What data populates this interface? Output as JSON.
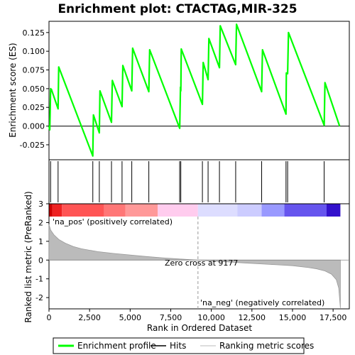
{
  "chart_data": {
    "type": "line",
    "title": "Enrichment plot: CTACTAG,MIR-325",
    "top_panel": {
      "ylabel": "Enrichment score (ES)",
      "ylim": [
        -0.045,
        0.14
      ],
      "yticks": [
        -0.025,
        0.0,
        0.025,
        0.05,
        0.075,
        0.1,
        0.125
      ],
      "ytick_labels": [
        "-0.025",
        "0.000",
        "0.025",
        "0.050",
        "0.075",
        "0.100",
        "0.125"
      ],
      "series": [
        {
          "name": "Enrichment profile",
          "color": "#00ff00",
          "x": [
            0,
            50,
            100,
            150,
            560,
            600,
            2700,
            2740,
            3100,
            3140,
            3850,
            3900,
            4500,
            4550,
            5100,
            5150,
            6150,
            6200,
            8050,
            8100,
            8120,
            8150,
            9450,
            9500,
            9800,
            9850,
            10500,
            10550,
            11500,
            11550,
            13100,
            13150,
            14600,
            14620,
            14700,
            14750,
            16950,
            17000,
            17900
          ],
          "y": [
            0.0,
            -0.005,
            0.05,
            0.049,
            0.023,
            0.079,
            -0.04,
            0.015,
            -0.009,
            0.047,
            0.005,
            0.061,
            0.026,
            0.081,
            0.047,
            0.104,
            0.046,
            0.102,
            -0.003,
            0.052,
            0.047,
            0.103,
            0.029,
            0.085,
            0.062,
            0.117,
            0.078,
            0.134,
            0.082,
            0.136,
            0.046,
            0.102,
            0.016,
            0.071,
            0.07,
            0.125,
            0.001,
            0.058,
            0.0
          ]
        }
      ]
    },
    "hits": {
      "name": "Hits",
      "positions": [
        100,
        560,
        2700,
        3100,
        3850,
        4500,
        5100,
        6150,
        8050,
        8120,
        9450,
        9800,
        10500,
        11500,
        13100,
        14600,
        14700,
        16950
      ]
    },
    "bottom_panel": {
      "ylabel": "Ranked list metric (PreRanked)",
      "xlabel": "Rank in Ordered Dataset",
      "xlim": [
        0,
        18500
      ],
      "ylim": [
        -2.6,
        3.0
      ],
      "xticks": [
        0,
        2500,
        5000,
        7500,
        10000,
        12500,
        15000,
        17500
      ],
      "xtick_labels": [
        "0",
        "2,500",
        "5,000",
        "7,500",
        "10,000",
        "12,500",
        "15,000",
        "17,500"
      ],
      "yticks": [
        -2,
        -1,
        0,
        1,
        2,
        3
      ],
      "ytick_labels": [
        "-2",
        "-1",
        "0",
        "1",
        "2",
        "3"
      ],
      "metric_x": [
        0,
        100,
        300,
        600,
        1000,
        1500,
        2000,
        3000,
        4000,
        5000,
        6000,
        7000,
        8000,
        9177,
        10000,
        11000,
        12000,
        13000,
        14000,
        15000,
        16000,
        16500,
        17000,
        17400,
        17700,
        17850,
        17950
      ],
      "metric_y": [
        1.9,
        1.6,
        1.35,
        1.1,
        0.9,
        0.72,
        0.6,
        0.45,
        0.35,
        0.27,
        0.19,
        0.12,
        0.06,
        0.0,
        -0.05,
        -0.1,
        -0.15,
        -0.2,
        -0.25,
        -0.3,
        -0.4,
        -0.47,
        -0.58,
        -0.75,
        -1.05,
        -1.5,
        -2.55
      ],
      "zero_cross": 9177,
      "zero_cross_label": "Zero cross at 9177",
      "pos_label": "'na_pos' (positively correlated)",
      "neg_label": "'na_neg' (negatively correlated)",
      "pos_label_color": "#cc0000",
      "neg_label_color": "#0000cc"
    },
    "color_bar": {
      "segments": [
        {
          "from": 0,
          "to": 200,
          "color": "#cc0000"
        },
        {
          "from": 200,
          "to": 800,
          "color": "#ee2222"
        },
        {
          "from": 800,
          "to": 3400,
          "color": "#ff5555"
        },
        {
          "from": 3400,
          "to": 4700,
          "color": "#ff7777"
        },
        {
          "from": 4700,
          "to": 6700,
          "color": "#ff9999"
        },
        {
          "from": 6700,
          "to": 9177,
          "color": "#ffccee"
        },
        {
          "from": 9177,
          "to": 11600,
          "color": "#ddddff"
        },
        {
          "from": 11600,
          "to": 13100,
          "color": "#ccccff"
        },
        {
          "from": 13100,
          "to": 14500,
          "color": "#9999ff"
        },
        {
          "from": 14500,
          "to": 17100,
          "color": "#6655ee"
        },
        {
          "from": 17100,
          "to": 17950,
          "color": "#3311cc"
        }
      ]
    },
    "legend": {
      "placement": "bottom",
      "items": [
        {
          "label": "Enrichment profile",
          "color": "#00ff00"
        },
        {
          "label": "Hits",
          "color": "#000000"
        },
        {
          "label": "Ranking metric scores",
          "color": "#bbbbbb"
        }
      ]
    }
  }
}
